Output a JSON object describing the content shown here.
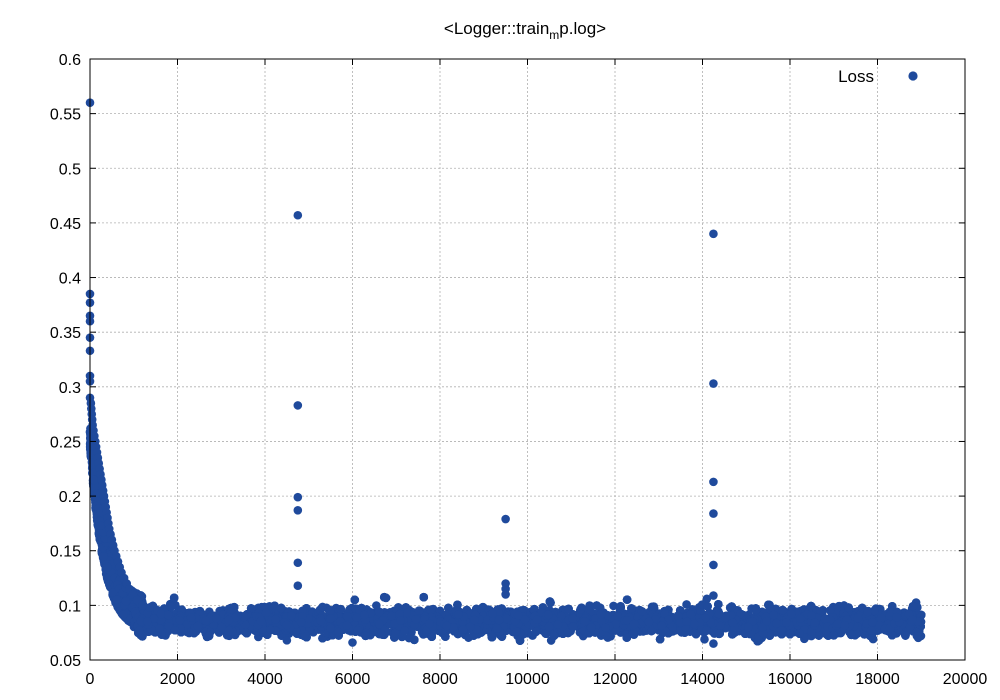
{
  "chart_data": {
    "type": "scatter",
    "title": "<Logger::train",
    "title_sub": "m",
    "title_rest": "p.log>",
    "xlabel": "",
    "ylabel": "",
    "xlim": [
      0,
      20000
    ],
    "ylim": [
      0.05,
      0.6
    ],
    "x_ticks": [
      0,
      2000,
      4000,
      6000,
      8000,
      10000,
      12000,
      14000,
      16000,
      18000,
      20000
    ],
    "y_ticks": [
      "0.05",
      "0.1",
      "0.15",
      "0.2",
      "0.25",
      "0.3",
      "0.35",
      "0.4",
      "0.45",
      "0.5",
      "0.55",
      "0.6"
    ],
    "grid": true,
    "legend_position": "top-right",
    "series": [
      {
        "name": "Loss",
        "color": "#1f4a9c",
        "description_points": [
          [
            0,
            0.56
          ],
          [
            0,
            0.385
          ],
          [
            0,
            0.377
          ],
          [
            0,
            0.365
          ],
          [
            0,
            0.36
          ],
          [
            0,
            0.345
          ],
          [
            0,
            0.333
          ],
          [
            0,
            0.31
          ],
          [
            0,
            0.305
          ],
          [
            0,
            0.29
          ],
          [
            20,
            0.285
          ],
          [
            30,
            0.28
          ],
          [
            40,
            0.275
          ],
          [
            50,
            0.27
          ],
          [
            60,
            0.265
          ],
          [
            80,
            0.26
          ],
          [
            100,
            0.255
          ],
          [
            120,
            0.25
          ],
          [
            140,
            0.245
          ],
          [
            160,
            0.24
          ],
          [
            180,
            0.235
          ],
          [
            200,
            0.23
          ],
          [
            220,
            0.225
          ],
          [
            240,
            0.22
          ],
          [
            260,
            0.215
          ],
          [
            280,
            0.21
          ],
          [
            300,
            0.205
          ],
          [
            320,
            0.2
          ],
          [
            340,
            0.195
          ],
          [
            360,
            0.19
          ],
          [
            380,
            0.185
          ],
          [
            400,
            0.18
          ],
          [
            420,
            0.175
          ],
          [
            440,
            0.17
          ],
          [
            470,
            0.165
          ],
          [
            500,
            0.16
          ],
          [
            530,
            0.155
          ],
          [
            560,
            0.15
          ],
          [
            600,
            0.145
          ],
          [
            640,
            0.14
          ],
          [
            680,
            0.135
          ],
          [
            720,
            0.13
          ],
          [
            780,
            0.125
          ],
          [
            840,
            0.12
          ],
          [
            900,
            0.115
          ],
          [
            980,
            0.11
          ],
          [
            1080,
            0.105
          ],
          [
            1200,
            0.1
          ],
          [
            4750,
            0.457
          ],
          [
            4750,
            0.283
          ],
          [
            4750,
            0.199
          ],
          [
            4750,
            0.187
          ],
          [
            4750,
            0.139
          ],
          [
            4750,
            0.118
          ],
          [
            9500,
            0.179
          ],
          [
            9500,
            0.12
          ],
          [
            9500,
            0.115
          ],
          [
            9500,
            0.11
          ],
          [
            14250,
            0.44
          ],
          [
            14250,
            0.303
          ],
          [
            14250,
            0.213
          ],
          [
            14250,
            0.184
          ],
          [
            14250,
            0.137
          ],
          [
            14250,
            0.109
          ],
          [
            14250,
            0.065
          ],
          [
            6000,
            0.066
          ],
          [
            4500,
            0.068
          ],
          [
            18900,
            0.072
          ]
        ],
        "bulk_region": {
          "x_range": [
            1000,
            19000
          ],
          "y_center": 0.085,
          "y_min": 0.066,
          "y_max": 0.108
        }
      }
    ]
  }
}
